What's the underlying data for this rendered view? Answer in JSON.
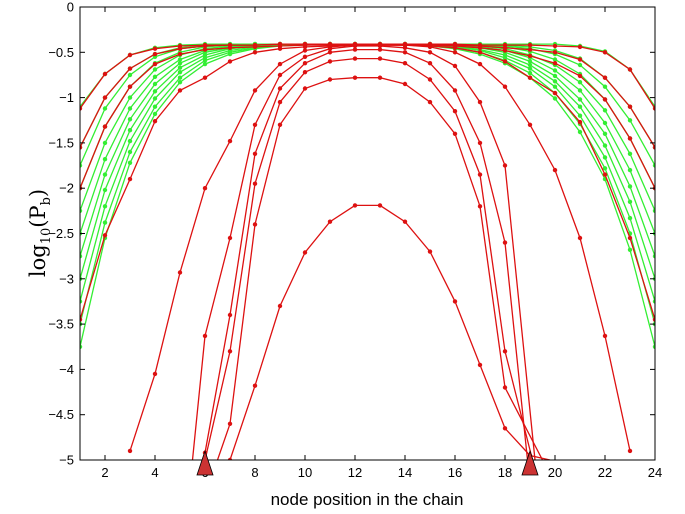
{
  "chart_data": {
    "type": "line",
    "title": "",
    "xlabel": "node position in the chain",
    "ylabel": {
      "base": "log",
      "sub": "10",
      "arg": "(P",
      "arg_sub": "b",
      "close": ")"
    },
    "xlim": [
      1,
      24
    ],
    "ylim": [
      -5,
      0
    ],
    "x_ticks": [
      2,
      4,
      6,
      8,
      10,
      12,
      14,
      16,
      18,
      20,
      22,
      24
    ],
    "x_tick_labels": [
      "2",
      "4",
      "6",
      "8",
      "10",
      "12",
      "14",
      "16",
      "18",
      "20",
      "22",
      "24"
    ],
    "y_ticks": [
      0,
      -0.5,
      -1,
      -1.5,
      -2,
      -2.5,
      -3,
      -3.5,
      -4,
      -4.5,
      -5
    ],
    "y_tick_labels": [
      "0",
      "-0.5",
      "-1",
      "-1.5",
      "-2",
      "-2.5",
      "-3",
      "-3.5",
      "-4",
      "-4.5",
      "-5"
    ],
    "grid": false,
    "legend": "none",
    "colors": {
      "green": "#33ee33",
      "red": "#dd1111",
      "marker_fill": "#cc3333",
      "marker_edge": "#000000"
    },
    "markers": [
      {
        "x": 6,
        "shape": "triangle"
      },
      {
        "x": 19,
        "shape": "triangle"
      }
    ],
    "series": [
      {
        "color": "green",
        "x": [
          1,
          2,
          3,
          4,
          5,
          6,
          7,
          8,
          9,
          10,
          11,
          12,
          13,
          14,
          15,
          16,
          17,
          18,
          19,
          20,
          21,
          22,
          23,
          24
        ],
        "y": [
          -1.1,
          -0.74,
          -0.53,
          -0.45,
          -0.42,
          -0.41,
          -0.41,
          -0.41,
          -0.41,
          -0.41,
          -0.41,
          -0.41,
          -0.41,
          -0.41,
          -0.41,
          -0.41,
          -0.41,
          -0.41,
          -0.41,
          -0.41,
          -0.43,
          -0.49,
          -0.69,
          -1.1
        ]
      },
      {
        "color": "green",
        "x": [
          1,
          2,
          3,
          4,
          5,
          6,
          7,
          8,
          9,
          10,
          11,
          12,
          13,
          14,
          15,
          16,
          17,
          18,
          19,
          20,
          21,
          22,
          23,
          24
        ],
        "y": [
          -1.55,
          -1.0,
          -0.68,
          -0.52,
          -0.45,
          -0.42,
          -0.41,
          -0.41,
          -0.41,
          -0.41,
          -0.41,
          -0.41,
          -0.41,
          -0.41,
          -0.41,
          -0.41,
          -0.41,
          -0.42,
          -0.44,
          -0.48,
          -0.57,
          -0.78,
          -1.1,
          -1.55
        ]
      },
      {
        "color": "green",
        "x": [
          1,
          2,
          3,
          4,
          5,
          6,
          7,
          8,
          9,
          10,
          11,
          12,
          13,
          14,
          15,
          16,
          17,
          18,
          19,
          20,
          21,
          22,
          23,
          24
        ],
        "y": [
          -1.75,
          -1.12,
          -0.75,
          -0.55,
          -0.46,
          -0.43,
          -0.42,
          -0.41,
          -0.41,
          -0.41,
          -0.41,
          -0.41,
          -0.41,
          -0.41,
          -0.41,
          -0.41,
          -0.42,
          -0.43,
          -0.46,
          -0.52,
          -0.64,
          -0.88,
          -1.25,
          -1.75
        ]
      },
      {
        "color": "green",
        "x": [
          1,
          2,
          3,
          4,
          5,
          6,
          7,
          8,
          9,
          10,
          11,
          12,
          13,
          14,
          15,
          16,
          17,
          18,
          19,
          20,
          21,
          22,
          23,
          24
        ],
        "y": [
          -2.0,
          -1.32,
          -0.88,
          -0.62,
          -0.5,
          -0.44,
          -0.42,
          -0.41,
          -0.41,
          -0.41,
          -0.41,
          -0.41,
          -0.41,
          -0.41,
          -0.41,
          -0.41,
          -0.42,
          -0.44,
          -0.49,
          -0.58,
          -0.74,
          -1.02,
          -1.45,
          -2.0
        ]
      },
      {
        "color": "green",
        "x": [
          1,
          2,
          3,
          4,
          5,
          6,
          7,
          8,
          9,
          10,
          11,
          12,
          13,
          14,
          15,
          16,
          17,
          18,
          19,
          20,
          21,
          22,
          23,
          24
        ],
        "y": [
          -2.25,
          -1.5,
          -1.0,
          -0.69,
          -0.53,
          -0.46,
          -0.43,
          -0.42,
          -0.41,
          -0.41,
          -0.41,
          -0.41,
          -0.41,
          -0.41,
          -0.41,
          -0.42,
          -0.43,
          -0.46,
          -0.53,
          -0.64,
          -0.83,
          -1.14,
          -1.62,
          -2.25
        ]
      },
      {
        "color": "green",
        "x": [
          1,
          2,
          3,
          4,
          5,
          6,
          7,
          8,
          9,
          10,
          11,
          12,
          13,
          14,
          15,
          16,
          17,
          18,
          19,
          20,
          21,
          22,
          23,
          24
        ],
        "y": [
          -2.5,
          -1.68,
          -1.12,
          -0.77,
          -0.58,
          -0.48,
          -0.44,
          -0.42,
          -0.41,
          -0.41,
          -0.41,
          -0.41,
          -0.41,
          -0.41,
          -0.41,
          -0.42,
          -0.44,
          -0.48,
          -0.56,
          -0.7,
          -0.92,
          -1.28,
          -1.8,
          -2.5
        ]
      },
      {
        "color": "green",
        "x": [
          1,
          2,
          3,
          4,
          5,
          6,
          7,
          8,
          9,
          10,
          11,
          12,
          13,
          14,
          15,
          16,
          17,
          18,
          19,
          20,
          21,
          22,
          23,
          24
        ],
        "y": [
          -2.75,
          -1.85,
          -1.24,
          -0.85,
          -0.62,
          -0.5,
          -0.45,
          -0.42,
          -0.41,
          -0.41,
          -0.41,
          -0.41,
          -0.41,
          -0.41,
          -0.42,
          -0.43,
          -0.45,
          -0.5,
          -0.6,
          -0.76,
          -1.02,
          -1.4,
          -1.98,
          -2.75
        ]
      },
      {
        "color": "green",
        "x": [
          1,
          2,
          3,
          4,
          5,
          6,
          7,
          8,
          9,
          10,
          11,
          12,
          13,
          14,
          15,
          16,
          17,
          18,
          19,
          20,
          21,
          22,
          23,
          24
        ],
        "y": [
          -3.0,
          -2.02,
          -1.36,
          -0.93,
          -0.67,
          -0.53,
          -0.46,
          -0.43,
          -0.42,
          -0.41,
          -0.41,
          -0.41,
          -0.41,
          -0.41,
          -0.42,
          -0.43,
          -0.47,
          -0.53,
          -0.64,
          -0.82,
          -1.1,
          -1.53,
          -2.15,
          -3.0
        ]
      },
      {
        "color": "green",
        "x": [
          1,
          2,
          3,
          4,
          5,
          6,
          7,
          8,
          9,
          10,
          11,
          12,
          13,
          14,
          15,
          16,
          17,
          18,
          19,
          20,
          21,
          22,
          23,
          24
        ],
        "y": [
          -3.25,
          -2.2,
          -1.48,
          -1.01,
          -0.72,
          -0.56,
          -0.48,
          -0.44,
          -0.42,
          -0.41,
          -0.41,
          -0.41,
          -0.41,
          -0.41,
          -0.42,
          -0.44,
          -0.48,
          -0.56,
          -0.68,
          -0.88,
          -1.2,
          -1.66,
          -2.33,
          -3.25
        ]
      },
      {
        "color": "green",
        "x": [
          1,
          2,
          3,
          4,
          5,
          6,
          7,
          8,
          9,
          10,
          11,
          12,
          13,
          14,
          15,
          16,
          17,
          18,
          19,
          20,
          21,
          22,
          23,
          24
        ],
        "y": [
          -3.5,
          -2.38,
          -1.6,
          -1.1,
          -0.78,
          -0.59,
          -0.5,
          -0.45,
          -0.42,
          -0.41,
          -0.41,
          -0.41,
          -0.41,
          -0.42,
          -0.43,
          -0.45,
          -0.5,
          -0.59,
          -0.73,
          -0.95,
          -1.29,
          -1.78,
          -2.5,
          -3.5
        ]
      },
      {
        "color": "green",
        "x": [
          1,
          2,
          3,
          4,
          5,
          6,
          7,
          8,
          9,
          10,
          11,
          12,
          13,
          14,
          15,
          16,
          17,
          18,
          19,
          20,
          21,
          22,
          23,
          24
        ],
        "y": [
          -3.75,
          -2.55,
          -1.72,
          -1.18,
          -0.83,
          -0.63,
          -0.52,
          -0.46,
          -0.43,
          -0.42,
          -0.41,
          -0.41,
          -0.41,
          -0.42,
          -0.43,
          -0.46,
          -0.52,
          -0.62,
          -0.78,
          -1.01,
          -1.38,
          -1.9,
          -2.68,
          -3.75
        ]
      },
      {
        "color": "red",
        "x": [
          1,
          2,
          3,
          4,
          5,
          6,
          7,
          8,
          9,
          10,
          11,
          12,
          13,
          14,
          15,
          16,
          17,
          18,
          19,
          20,
          21,
          22,
          23,
          24
        ],
        "y": [
          -1.12,
          -0.74,
          -0.53,
          -0.46,
          -0.43,
          -0.42,
          -0.42,
          -0.42,
          -0.41,
          -0.41,
          -0.41,
          -0.41,
          -0.41,
          -0.41,
          -0.41,
          -0.41,
          -0.42,
          -0.42,
          -0.42,
          -0.43,
          -0.44,
          -0.5,
          -0.69,
          -1.12
        ]
      },
      {
        "color": "red",
        "x": [
          1,
          2,
          3,
          4,
          5,
          6,
          7,
          8,
          9,
          10,
          11,
          12,
          13,
          14,
          15,
          16,
          17,
          18,
          19,
          20,
          21,
          22,
          23,
          24
        ],
        "y": [
          -1.55,
          -1.0,
          -0.68,
          -0.52,
          -0.46,
          -0.43,
          -0.42,
          -0.42,
          -0.41,
          -0.41,
          -0.41,
          -0.41,
          -0.41,
          -0.41,
          -0.41,
          -0.42,
          -0.43,
          -0.45,
          -0.47,
          -0.5,
          -0.58,
          -0.78,
          -1.1,
          -1.55
        ]
      },
      {
        "color": "red",
        "x": [
          1,
          2,
          3,
          4,
          5,
          6,
          7,
          8,
          9,
          10,
          11,
          12,
          13,
          14,
          15,
          16,
          17,
          18,
          19,
          20,
          21,
          22,
          23,
          24
        ],
        "y": [
          -2.0,
          -1.32,
          -0.88,
          -0.63,
          -0.52,
          -0.47,
          -0.45,
          -0.44,
          -0.43,
          -0.42,
          -0.42,
          -0.42,
          -0.42,
          -0.42,
          -0.42,
          -0.43,
          -0.45,
          -0.48,
          -0.54,
          -0.62,
          -0.76,
          -1.02,
          -1.45,
          -2.0
        ]
      },
      {
        "color": "red",
        "x": [
          1,
          2,
          3,
          4,
          5,
          6,
          7,
          8,
          9,
          10,
          11,
          12,
          13,
          14,
          15,
          16,
          17,
          18,
          19,
          20,
          21,
          22,
          23,
          24
        ],
        "y": [
          -3.45,
          -2.52,
          -1.9,
          -1.26,
          -0.92,
          -0.78,
          -0.6,
          -0.5,
          -0.46,
          -0.44,
          -0.43,
          -0.42,
          -0.42,
          -0.42,
          -0.43,
          -0.45,
          -0.5,
          -0.6,
          -0.78,
          -0.95,
          -1.27,
          -1.85,
          -2.55,
          -3.45
        ]
      },
      {
        "color": "red",
        "x": [
          3,
          4,
          5,
          6,
          7,
          8,
          9,
          10,
          11,
          12,
          13,
          14,
          15,
          16,
          17,
          18,
          19,
          20,
          21,
          22,
          23
        ],
        "y": [
          -4.9,
          -4.05,
          -2.93,
          -2.0,
          -1.48,
          -0.92,
          -0.63,
          -0.48,
          -0.44,
          -0.42,
          -0.42,
          -0.42,
          -0.44,
          -0.5,
          -0.63,
          -0.88,
          -1.3,
          -1.8,
          -2.55,
          -3.63,
          -4.9
        ]
      },
      {
        "color": "red",
        "x": [
          5.5,
          6,
          7,
          8,
          9,
          10,
          11,
          12,
          13,
          14,
          15,
          16,
          17,
          18,
          19.2
        ],
        "y": [
          -5.0,
          -3.63,
          -2.55,
          -1.3,
          -0.75,
          -0.55,
          -0.46,
          -0.43,
          -0.43,
          -0.45,
          -0.5,
          -0.65,
          -1.05,
          -1.75,
          -5.0
        ]
      },
      {
        "color": "red",
        "x": [
          5.9,
          6,
          7,
          8,
          9,
          10,
          11,
          12,
          13,
          14,
          15,
          16,
          17,
          18,
          18.9
        ],
        "y": [
          -5.0,
          -4.92,
          -3.4,
          -1.62,
          -0.9,
          -0.62,
          -0.5,
          -0.47,
          -0.47,
          -0.5,
          -0.62,
          -0.92,
          -1.5,
          -2.6,
          -5.0
        ]
      },
      {
        "color": "red",
        "x": [
          6,
          7,
          8,
          9,
          10,
          11,
          12,
          13,
          14,
          15,
          16,
          17,
          18,
          19.1
        ],
        "y": [
          -5.0,
          -3.8,
          -1.95,
          -1.05,
          -0.72,
          -0.6,
          -0.57,
          -0.57,
          -0.62,
          -0.8,
          -1.15,
          -1.85,
          -3.8,
          -5.0
        ]
      },
      {
        "color": "red",
        "x": [
          6.5,
          7,
          8,
          9,
          10,
          11,
          12,
          13,
          14,
          15,
          16,
          17,
          18,
          19.5
        ],
        "y": [
          -5.0,
          -4.6,
          -2.4,
          -1.3,
          -0.9,
          -0.8,
          -0.78,
          -0.78,
          -0.85,
          -1.05,
          -1.4,
          -2.2,
          -4.2,
          -5.0
        ]
      },
      {
        "color": "red",
        "x": [
          7,
          8,
          9,
          10,
          11,
          12,
          13,
          14,
          15,
          16,
          17,
          18,
          19,
          19.8
        ],
        "y": [
          -5.0,
          -4.18,
          -3.3,
          -2.71,
          -2.37,
          -2.19,
          -2.19,
          -2.37,
          -2.7,
          -3.25,
          -3.95,
          -4.65,
          -4.95,
          -5.0
        ]
      }
    ]
  }
}
